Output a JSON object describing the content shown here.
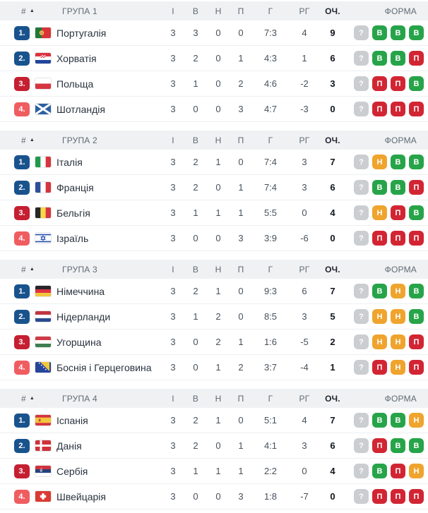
{
  "icons": {
    "sort_asc": "▲"
  },
  "columns": {
    "rank": "#",
    "played": "І",
    "won": "В",
    "drawn": "Н",
    "lost": "П",
    "goals": "Г",
    "goal_diff": "РГ",
    "points": "ОЧ.",
    "form": "ФОРМА"
  },
  "form_legend": {
    "win": "В",
    "draw": "Н",
    "loss": "П",
    "unknown": "?"
  },
  "colors": {
    "rank_top": "#19538d",
    "rank_third": "#c51f31",
    "rank_fourth": "#ef5d60",
    "form_win": "#27a449",
    "form_draw": "#efa42e",
    "form_loss": "#d22533",
    "form_unknown": "#cbced1",
    "header_bg": "#f0f1f2"
  },
  "groups": [
    {
      "label": "ГРУПА 1",
      "teams": [
        {
          "rank": "1.",
          "rank_type": "top",
          "flag": "portugal",
          "name": "Португалія",
          "played": "3",
          "won": "3",
          "drawn": "0",
          "lost": "0",
          "goals": "7:3",
          "goal_diff": "4",
          "points": "9",
          "form": [
            "unknown",
            "win",
            "win",
            "win"
          ]
        },
        {
          "rank": "2.",
          "rank_type": "top",
          "flag": "croatia",
          "name": "Хорватія",
          "played": "3",
          "won": "2",
          "drawn": "0",
          "lost": "1",
          "goals": "4:3",
          "goal_diff": "1",
          "points": "6",
          "form": [
            "unknown",
            "win",
            "win",
            "loss"
          ]
        },
        {
          "rank": "3.",
          "rank_type": "third",
          "flag": "poland",
          "name": "Польща",
          "played": "3",
          "won": "1",
          "drawn": "0",
          "lost": "2",
          "goals": "4:6",
          "goal_diff": "-2",
          "points": "3",
          "form": [
            "unknown",
            "loss",
            "loss",
            "win"
          ]
        },
        {
          "rank": "4.",
          "rank_type": "fourth",
          "flag": "scotland",
          "name": "Шотландія",
          "played": "3",
          "won": "0",
          "drawn": "0",
          "lost": "3",
          "goals": "4:7",
          "goal_diff": "-3",
          "points": "0",
          "form": [
            "unknown",
            "loss",
            "loss",
            "loss"
          ]
        }
      ]
    },
    {
      "label": "ГРУПА 2",
      "teams": [
        {
          "rank": "1.",
          "rank_type": "top",
          "flag": "italy",
          "name": "Італія",
          "played": "3",
          "won": "2",
          "drawn": "1",
          "lost": "0",
          "goals": "7:4",
          "goal_diff": "3",
          "points": "7",
          "form": [
            "unknown",
            "draw",
            "win",
            "win"
          ]
        },
        {
          "rank": "2.",
          "rank_type": "top",
          "flag": "france",
          "name": "Франція",
          "played": "3",
          "won": "2",
          "drawn": "0",
          "lost": "1",
          "goals": "7:4",
          "goal_diff": "3",
          "points": "6",
          "form": [
            "unknown",
            "win",
            "win",
            "loss"
          ]
        },
        {
          "rank": "3.",
          "rank_type": "third",
          "flag": "belgium",
          "name": "Бельгія",
          "played": "3",
          "won": "1",
          "drawn": "1",
          "lost": "1",
          "goals": "5:5",
          "goal_diff": "0",
          "points": "4",
          "form": [
            "unknown",
            "draw",
            "loss",
            "win"
          ]
        },
        {
          "rank": "4.",
          "rank_type": "fourth",
          "flag": "israel",
          "name": "Ізраїль",
          "played": "3",
          "won": "0",
          "drawn": "0",
          "lost": "3",
          "goals": "3:9",
          "goal_diff": "-6",
          "points": "0",
          "form": [
            "unknown",
            "loss",
            "loss",
            "loss"
          ]
        }
      ]
    },
    {
      "label": "ГРУПА 3",
      "teams": [
        {
          "rank": "1.",
          "rank_type": "top",
          "flag": "germany",
          "name": "Німеччина",
          "played": "3",
          "won": "2",
          "drawn": "1",
          "lost": "0",
          "goals": "9:3",
          "goal_diff": "6",
          "points": "7",
          "form": [
            "unknown",
            "win",
            "draw",
            "win"
          ]
        },
        {
          "rank": "2.",
          "rank_type": "top",
          "flag": "netherlands",
          "name": "Нідерланди",
          "played": "3",
          "won": "1",
          "drawn": "2",
          "lost": "0",
          "goals": "8:5",
          "goal_diff": "3",
          "points": "5",
          "form": [
            "unknown",
            "draw",
            "draw",
            "win"
          ]
        },
        {
          "rank": "3.",
          "rank_type": "third",
          "flag": "hungary",
          "name": "Угорщина",
          "played": "3",
          "won": "0",
          "drawn": "2",
          "lost": "1",
          "goals": "1:6",
          "goal_diff": "-5",
          "points": "2",
          "form": [
            "unknown",
            "draw",
            "draw",
            "loss"
          ]
        },
        {
          "rank": "4.",
          "rank_type": "fourth",
          "flag": "bosnia",
          "name": "Боснія і Герцеговина",
          "played": "3",
          "won": "0",
          "drawn": "1",
          "lost": "2",
          "goals": "3:7",
          "goal_diff": "-4",
          "points": "1",
          "form": [
            "unknown",
            "loss",
            "draw",
            "loss"
          ]
        }
      ]
    },
    {
      "label": "ГРУПА 4",
      "teams": [
        {
          "rank": "1.",
          "rank_type": "top",
          "flag": "spain",
          "name": "Іспанія",
          "played": "3",
          "won": "2",
          "drawn": "1",
          "lost": "0",
          "goals": "5:1",
          "goal_diff": "4",
          "points": "7",
          "form": [
            "unknown",
            "win",
            "win",
            "draw"
          ]
        },
        {
          "rank": "2.",
          "rank_type": "top",
          "flag": "denmark",
          "name": "Данія",
          "played": "3",
          "won": "2",
          "drawn": "0",
          "lost": "1",
          "goals": "4:1",
          "goal_diff": "3",
          "points": "6",
          "form": [
            "unknown",
            "loss",
            "win",
            "win"
          ]
        },
        {
          "rank": "3.",
          "rank_type": "third",
          "flag": "serbia",
          "name": "Сербія",
          "played": "3",
          "won": "1",
          "drawn": "1",
          "lost": "1",
          "goals": "2:2",
          "goal_diff": "0",
          "points": "4",
          "form": [
            "unknown",
            "win",
            "loss",
            "draw"
          ]
        },
        {
          "rank": "4.",
          "rank_type": "fourth",
          "flag": "switzerland",
          "name": "Швейцарія",
          "played": "3",
          "won": "0",
          "drawn": "0",
          "lost": "3",
          "goals": "1:8",
          "goal_diff": "-7",
          "points": "0",
          "form": [
            "unknown",
            "loss",
            "loss",
            "loss"
          ]
        }
      ]
    }
  ]
}
